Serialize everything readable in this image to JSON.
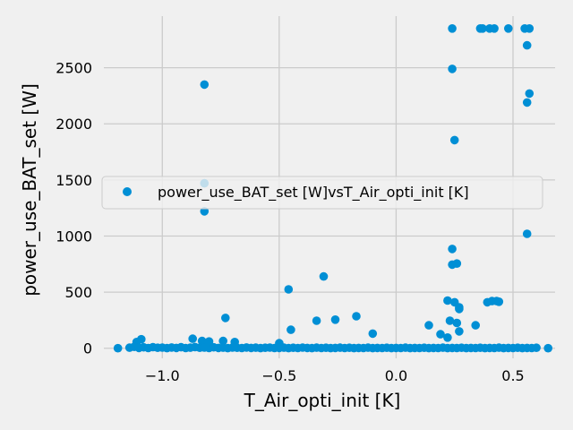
{
  "chart_data": {
    "type": "scatter",
    "xlabel": "T_Air_opti_init [K]",
    "ylabel": "power_use_BAT_set [W]",
    "xlim": [
      -1.25,
      0.68
    ],
    "ylim": [
      -90,
      2960
    ],
    "x_ticks": [
      -1.0,
      -0.5,
      0.0,
      0.5
    ],
    "x_tick_labels": [
      "−1.0",
      "−0.5",
      "0.0",
      "0.5"
    ],
    "y_ticks": [
      0,
      500,
      1000,
      1500,
      2000,
      2500
    ],
    "y_tick_labels": [
      "0",
      "500",
      "1000",
      "1500",
      "2000",
      "2500"
    ],
    "grid": true,
    "legend_position": "center",
    "series": [
      {
        "name": "power_use_BAT_set [W]vsT_Air_opti_init [K]",
        "color": "#008fd5",
        "points": [
          [
            0.24,
            2850
          ],
          [
            0.36,
            2850
          ],
          [
            0.37,
            2850
          ],
          [
            0.4,
            2850
          ],
          [
            0.42,
            2850
          ],
          [
            0.48,
            2850
          ],
          [
            0.55,
            2850
          ],
          [
            0.57,
            2850
          ],
          [
            0.24,
            2490
          ],
          [
            0.56,
            2700
          ],
          [
            0.57,
            2270
          ],
          [
            0.56,
            2190
          ],
          [
            -0.82,
            2350
          ],
          [
            0.25,
            1855
          ],
          [
            -0.82,
            1470
          ],
          [
            -0.82,
            1220
          ],
          [
            0.56,
            1020
          ],
          [
            0.24,
            885
          ],
          [
            0.24,
            745
          ],
          [
            0.26,
            755
          ],
          [
            -0.31,
            640
          ],
          [
            -0.46,
            525
          ],
          [
            0.22,
            425
          ],
          [
            0.25,
            410
          ],
          [
            0.27,
            365
          ],
          [
            0.27,
            350
          ],
          [
            0.39,
            410
          ],
          [
            0.41,
            420
          ],
          [
            0.43,
            420
          ],
          [
            0.44,
            415
          ],
          [
            -0.73,
            270
          ],
          [
            -0.17,
            285
          ],
          [
            -0.34,
            245
          ],
          [
            -0.26,
            255
          ],
          [
            0.23,
            245
          ],
          [
            0.26,
            225
          ],
          [
            0.14,
            205
          ],
          [
            0.34,
            205
          ],
          [
            -0.45,
            165
          ],
          [
            -0.1,
            130
          ],
          [
            0.19,
            125
          ],
          [
            0.22,
            95
          ],
          [
            0.27,
            150
          ],
          [
            -1.09,
            80
          ],
          [
            -1.11,
            55
          ],
          [
            -0.87,
            85
          ],
          [
            -0.83,
            65
          ],
          [
            -0.8,
            60
          ],
          [
            -0.74,
            65
          ],
          [
            -0.69,
            55
          ],
          [
            -0.5,
            45
          ],
          [
            -1.19,
            0
          ],
          [
            -1.14,
            5
          ],
          [
            -1.12,
            12
          ],
          [
            -1.1,
            3
          ],
          [
            -1.08,
            8
          ],
          [
            -1.06,
            2
          ],
          [
            -1.04,
            10
          ],
          [
            -1.02,
            4
          ],
          [
            -1.0,
            6
          ],
          [
            -0.98,
            1
          ],
          [
            -0.96,
            7
          ],
          [
            -0.94,
            3
          ],
          [
            -0.92,
            9
          ],
          [
            -0.9,
            2
          ],
          [
            -0.88,
            5
          ],
          [
            -0.86,
            11
          ],
          [
            -0.84,
            4
          ],
          [
            -0.82,
            6
          ],
          [
            -0.8,
            2
          ],
          [
            -0.78,
            8
          ],
          [
            -0.76,
            3
          ],
          [
            -0.74,
            5
          ],
          [
            -0.72,
            1
          ],
          [
            -0.7,
            6
          ],
          [
            -0.68,
            4
          ],
          [
            -0.66,
            2
          ],
          [
            -0.64,
            7
          ],
          [
            -0.62,
            3
          ],
          [
            -0.6,
            5
          ],
          [
            -0.58,
            1
          ],
          [
            -0.56,
            4
          ],
          [
            -0.54,
            6
          ],
          [
            -0.52,
            2
          ],
          [
            -0.5,
            3
          ],
          [
            -0.48,
            5
          ],
          [
            -0.46,
            1
          ],
          [
            -0.44,
            4
          ],
          [
            -0.42,
            2
          ],
          [
            -0.4,
            6
          ],
          [
            -0.38,
            3
          ],
          [
            -0.36,
            1
          ],
          [
            -0.34,
            5
          ],
          [
            -0.32,
            2
          ],
          [
            -0.3,
            4
          ],
          [
            -0.28,
            1
          ],
          [
            -0.26,
            3
          ],
          [
            -0.24,
            5
          ],
          [
            -0.22,
            2
          ],
          [
            -0.2,
            4
          ],
          [
            -0.18,
            1
          ],
          [
            -0.16,
            3
          ],
          [
            -0.14,
            2
          ],
          [
            -0.12,
            5
          ],
          [
            -0.1,
            1
          ],
          [
            -0.08,
            3
          ],
          [
            -0.06,
            2
          ],
          [
            -0.04,
            4
          ],
          [
            -0.02,
            1
          ],
          [
            0.0,
            3
          ],
          [
            0.02,
            2
          ],
          [
            0.04,
            5
          ],
          [
            0.06,
            1
          ],
          [
            0.08,
            3
          ],
          [
            0.1,
            2
          ],
          [
            0.12,
            4
          ],
          [
            0.14,
            1
          ],
          [
            0.16,
            3
          ],
          [
            0.18,
            2
          ],
          [
            0.2,
            5
          ],
          [
            0.22,
            1
          ],
          [
            0.24,
            3
          ],
          [
            0.26,
            2
          ],
          [
            0.28,
            4
          ],
          [
            0.3,
            1
          ],
          [
            0.32,
            3
          ],
          [
            0.34,
            2
          ],
          [
            0.36,
            4
          ],
          [
            0.38,
            1
          ],
          [
            0.4,
            3
          ],
          [
            0.42,
            2
          ],
          [
            0.44,
            5
          ],
          [
            0.46,
            1
          ],
          [
            0.48,
            3
          ],
          [
            0.5,
            2
          ],
          [
            0.52,
            4
          ],
          [
            0.54,
            1
          ],
          [
            0.56,
            3
          ],
          [
            0.58,
            2
          ],
          [
            0.6,
            4
          ],
          [
            0.65,
            0
          ]
        ]
      }
    ]
  }
}
